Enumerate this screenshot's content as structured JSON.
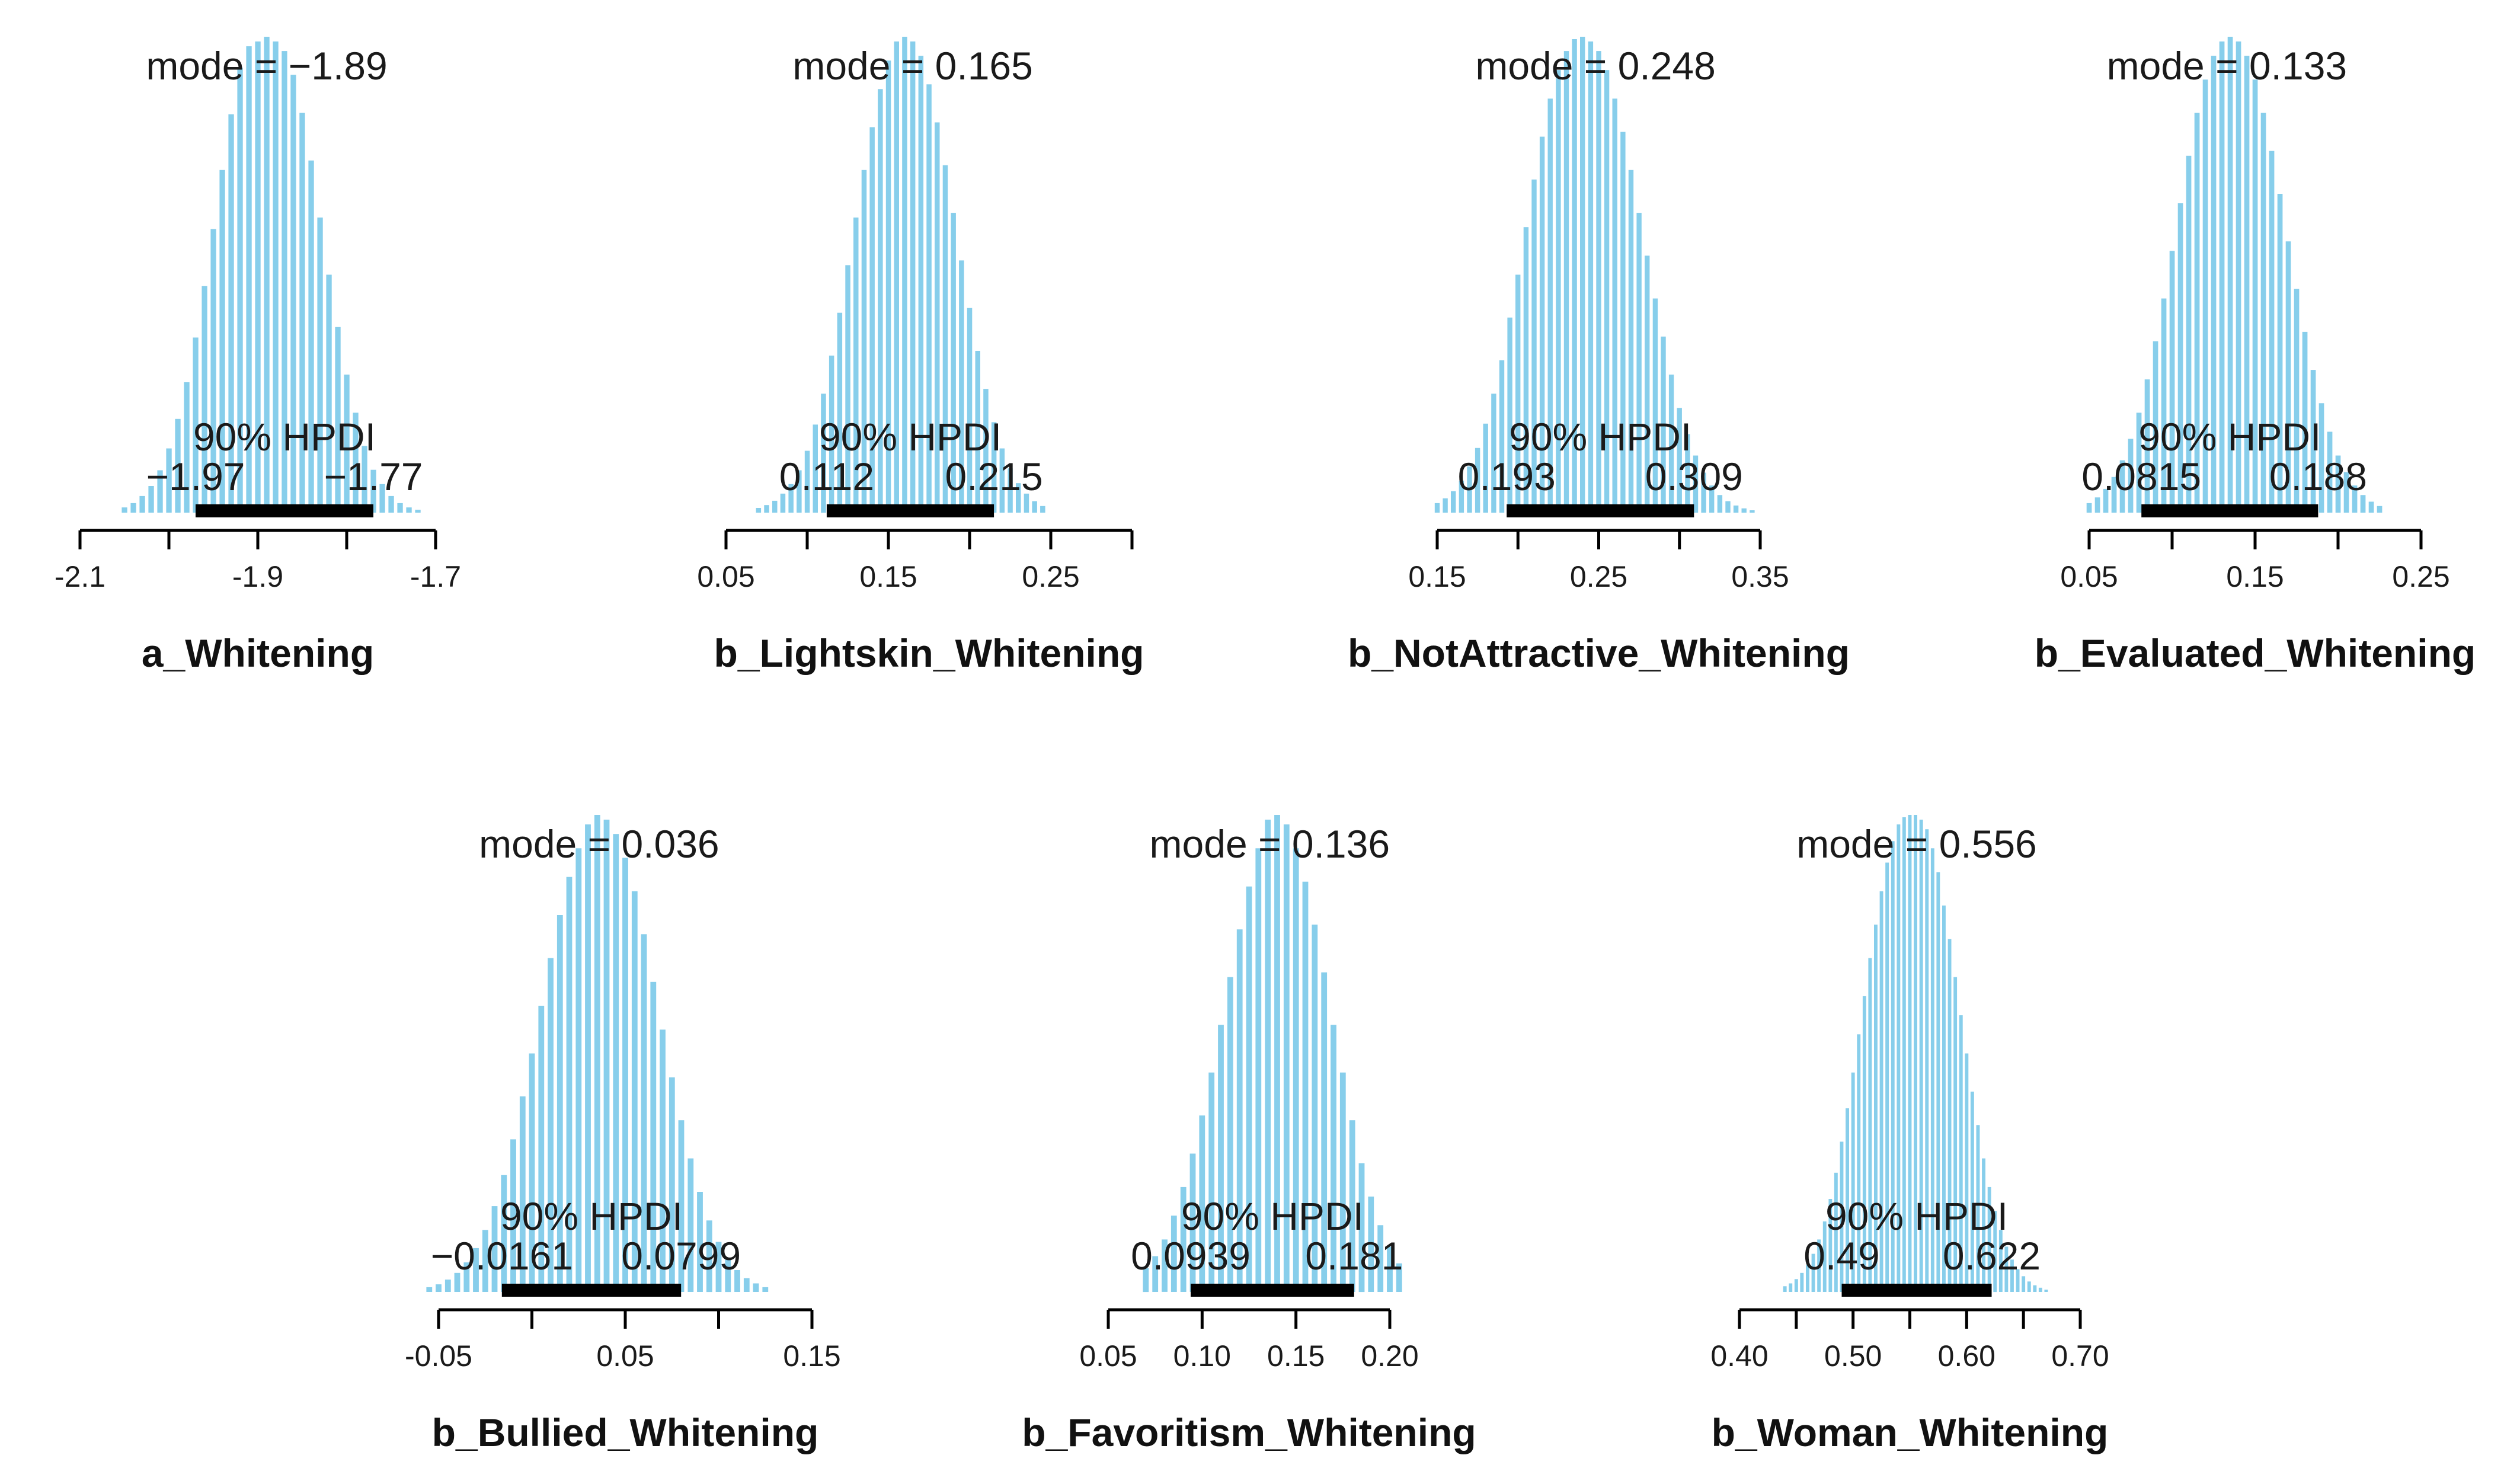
{
  "figure": {
    "bar_color": "#87CEEB",
    "hpdi_color": "#000000",
    "text_color": "#1a1a1a"
  },
  "chart_data": [
    {
      "type": "bar",
      "title": "a_Whitening",
      "mode_label": "mode = −1.89",
      "hpdi_label": "90% HPDI",
      "mode": -1.89,
      "hpdi": [
        -1.97,
        -1.77
      ],
      "hpdi_lower_label": "−1.97",
      "hpdi_upper_label": "−1.77",
      "xlim": [
        -2.1,
        -1.7
      ],
      "x_ticks": [
        -2.1,
        -2.0,
        -1.9,
        -1.8,
        -1.7
      ],
      "x_tick_labels": [
        "-2.1",
        "",
        "-1.9",
        "",
        "-1.7"
      ],
      "sd": 0.06,
      "x": [
        -2.05,
        -2.04,
        -2.03,
        -2.02,
        -2.01,
        -2.0,
        -1.99,
        -1.98,
        -1.97,
        -1.96,
        -1.95,
        -1.94,
        -1.93,
        -1.92,
        -1.91,
        -1.9,
        -1.89,
        -1.88,
        -1.87,
        -1.86,
        -1.85,
        -1.84,
        -1.83,
        -1.82,
        -1.81,
        -1.8,
        -1.79,
        -1.78,
        -1.77,
        -1.76,
        -1.75,
        -1.74,
        -1.73,
        -1.72
      ],
      "density": [
        0.011,
        0.02,
        0.035,
        0.056,
        0.089,
        0.135,
        0.197,
        0.274,
        0.368,
        0.476,
        0.596,
        0.72,
        0.837,
        0.935,
        0.98,
        0.99,
        1.0,
        0.99,
        0.97,
        0.92,
        0.84,
        0.74,
        0.62,
        0.5,
        0.39,
        0.29,
        0.21,
        0.14,
        0.09,
        0.06,
        0.035,
        0.02,
        0.011,
        0.006
      ]
    },
    {
      "type": "bar",
      "title": "b_Lightskin_Whitening",
      "mode_label": "mode = 0.165",
      "hpdi_label": "90% HPDI",
      "mode": 0.165,
      "hpdi": [
        0.112,
        0.215
      ],
      "hpdi_lower_label": "0.112",
      "hpdi_upper_label": "0.215",
      "xlim": [
        0.05,
        0.3
      ],
      "x_ticks": [
        0.05,
        0.1,
        0.15,
        0.2,
        0.25,
        0.3
      ],
      "x_tick_labels": [
        "0.05",
        "",
        "0.15",
        "",
        "0.25",
        ""
      ],
      "sd": 0.031,
      "x": [
        0.07,
        0.075,
        0.08,
        0.085,
        0.09,
        0.095,
        0.1,
        0.105,
        0.11,
        0.115,
        0.12,
        0.125,
        0.13,
        0.135,
        0.14,
        0.145,
        0.15,
        0.155,
        0.16,
        0.165,
        0.17,
        0.175,
        0.18,
        0.185,
        0.19,
        0.195,
        0.2,
        0.205,
        0.21,
        0.215,
        0.22,
        0.225,
        0.23,
        0.235,
        0.24,
        0.245
      ],
      "density": [
        0.01,
        0.016,
        0.025,
        0.04,
        0.06,
        0.089,
        0.13,
        0.185,
        0.25,
        0.33,
        0.42,
        0.52,
        0.62,
        0.72,
        0.81,
        0.89,
        0.95,
        0.99,
        1.0,
        0.99,
        0.96,
        0.9,
        0.82,
        0.73,
        0.63,
        0.53,
        0.43,
        0.34,
        0.26,
        0.19,
        0.135,
        0.093,
        0.062,
        0.04,
        0.024,
        0.014
      ]
    },
    {
      "type": "bar",
      "title": "b_NotAttractive_Whitening",
      "mode_label": "mode = 0.248",
      "hpdi_label": "90% HPDI",
      "mode": 0.248,
      "hpdi": [
        0.193,
        0.309
      ],
      "hpdi_lower_label": "0.193",
      "hpdi_upper_label": "0.309",
      "xlim": [
        0.15,
        0.35
      ],
      "x_ticks": [
        0.15,
        0.2,
        0.25,
        0.3,
        0.35
      ],
      "x_tick_labels": [
        "0.15",
        "",
        "0.25",
        "",
        "0.35"
      ],
      "sd": 0.035,
      "x": [
        0.15,
        0.155,
        0.16,
        0.165,
        0.17,
        0.175,
        0.18,
        0.185,
        0.19,
        0.195,
        0.2,
        0.205,
        0.21,
        0.215,
        0.22,
        0.225,
        0.23,
        0.235,
        0.24,
        0.245,
        0.25,
        0.255,
        0.26,
        0.265,
        0.27,
        0.275,
        0.28,
        0.285,
        0.29,
        0.295,
        0.3,
        0.305,
        0.31,
        0.315,
        0.32,
        0.325,
        0.33,
        0.335,
        0.34,
        0.345
      ],
      "density": [
        0.02,
        0.03,
        0.045,
        0.067,
        0.097,
        0.136,
        0.187,
        0.25,
        0.32,
        0.41,
        0.5,
        0.6,
        0.7,
        0.79,
        0.87,
        0.93,
        0.97,
        0.995,
        1.0,
        0.99,
        0.97,
        0.93,
        0.87,
        0.8,
        0.72,
        0.63,
        0.54,
        0.45,
        0.37,
        0.29,
        0.22,
        0.165,
        0.12,
        0.084,
        0.057,
        0.037,
        0.024,
        0.015,
        0.009,
        0.005
      ]
    },
    {
      "type": "bar",
      "title": "b_Evaluated_Whitening",
      "mode_label": "mode = 0.133",
      "hpdi_label": "90% HPDI",
      "mode": 0.133,
      "hpdi": [
        0.0815,
        0.188
      ],
      "hpdi_lower_label": "0.0815",
      "hpdi_upper_label": "0.188",
      "xlim": [
        0.05,
        0.25
      ],
      "x_ticks": [
        0.05,
        0.1,
        0.15,
        0.2,
        0.25
      ],
      "x_tick_labels": [
        "0.05",
        "",
        "0.15",
        "",
        "0.25"
      ],
      "sd": 0.032,
      "x": [
        0.05,
        0.055,
        0.06,
        0.065,
        0.07,
        0.075,
        0.08,
        0.085,
        0.09,
        0.095,
        0.1,
        0.105,
        0.11,
        0.115,
        0.12,
        0.125,
        0.13,
        0.135,
        0.14,
        0.145,
        0.15,
        0.155,
        0.16,
        0.165,
        0.17,
        0.175,
        0.18,
        0.185,
        0.19,
        0.195,
        0.2,
        0.205,
        0.21,
        0.215,
        0.22,
        0.225
      ],
      "density": [
        0.02,
        0.032,
        0.05,
        0.075,
        0.11,
        0.155,
        0.21,
        0.28,
        0.36,
        0.45,
        0.55,
        0.65,
        0.75,
        0.84,
        0.91,
        0.96,
        0.99,
        1.0,
        0.99,
        0.96,
        0.91,
        0.84,
        0.76,
        0.67,
        0.57,
        0.47,
        0.38,
        0.3,
        0.23,
        0.17,
        0.12,
        0.085,
        0.057,
        0.037,
        0.023,
        0.014
      ]
    },
    {
      "type": "bar",
      "title": "b_Bullied_Whitening",
      "mode_label": "mode = 0.036",
      "hpdi_label": "90% HPDI",
      "mode": 0.036,
      "hpdi": [
        -0.0161,
        0.0799
      ],
      "hpdi_lower_label": "−0.0161",
      "hpdi_upper_label": "0.0799",
      "xlim": [
        -0.05,
        0.15
      ],
      "x_ticks": [
        -0.05,
        0.0,
        0.05,
        0.1,
        0.15
      ],
      "x_tick_labels": [
        "-0.05",
        "",
        "0.05",
        "",
        "0.15"
      ],
      "sd": 0.029,
      "x": [
        -0.055,
        -0.05,
        -0.045,
        -0.04,
        -0.035,
        -0.03,
        -0.025,
        -0.02,
        -0.015,
        -0.01,
        -0.005,
        0.0,
        0.005,
        0.01,
        0.015,
        0.02,
        0.025,
        0.03,
        0.035,
        0.04,
        0.045,
        0.05,
        0.055,
        0.06,
        0.065,
        0.07,
        0.075,
        0.08,
        0.085,
        0.09,
        0.095,
        0.1,
        0.105,
        0.11,
        0.115,
        0.12,
        0.125
      ],
      "density": [
        0.01,
        0.016,
        0.026,
        0.04,
        0.062,
        0.092,
        0.13,
        0.18,
        0.245,
        0.32,
        0.41,
        0.5,
        0.6,
        0.7,
        0.79,
        0.87,
        0.93,
        0.98,
        1.0,
        0.99,
        0.96,
        0.91,
        0.84,
        0.75,
        0.65,
        0.55,
        0.45,
        0.36,
        0.28,
        0.21,
        0.15,
        0.105,
        0.07,
        0.046,
        0.029,
        0.018,
        0.01
      ]
    },
    {
      "type": "bar",
      "title": "b_Favoritism_Whitening",
      "mode_label": "mode = 0.136",
      "hpdi_label": "90% HPDI",
      "mode": 0.136,
      "hpdi": [
        0.0939,
        0.181
      ],
      "hpdi_lower_label": "0.0939",
      "hpdi_upper_label": "0.181",
      "xlim": [
        0.05,
        0.2
      ],
      "x_ticks": [
        0.05,
        0.1,
        0.15,
        0.2
      ],
      "x_tick_labels": [
        "0.05",
        "0.10",
        "0.15",
        "0.20"
      ],
      "sd": 0.027,
      "x": [
        0.07,
        0.075,
        0.08,
        0.085,
        0.09,
        0.095,
        0.1,
        0.105,
        0.11,
        0.115,
        0.12,
        0.125,
        0.13,
        0.135,
        0.14,
        0.145,
        0.15,
        0.155,
        0.16,
        0.165,
        0.17,
        0.175,
        0.18,
        0.185,
        0.19,
        0.195,
        0.2,
        0.205
      ],
      "density": [
        0.05,
        0.075,
        0.11,
        0.16,
        0.22,
        0.29,
        0.37,
        0.46,
        0.56,
        0.66,
        0.76,
        0.85,
        0.93,
        0.99,
        1.0,
        0.98,
        0.93,
        0.86,
        0.77,
        0.67,
        0.56,
        0.46,
        0.36,
        0.27,
        0.2,
        0.14,
        0.095,
        0.06
      ]
    },
    {
      "type": "bar",
      "title": "b_Woman_Whitening",
      "mode_label": "mode = 0.556",
      "hpdi_label": "90% HPDI",
      "mode": 0.556,
      "hpdi": [
        0.49,
        0.622
      ],
      "hpdi_lower_label": "0.49",
      "hpdi_upper_label": "0.622",
      "xlim": [
        0.4,
        0.7
      ],
      "x_ticks": [
        0.4,
        0.45,
        0.5,
        0.55,
        0.6,
        0.65,
        0.7
      ],
      "x_tick_labels": [
        "0.40",
        "",
        "0.50",
        "",
        "0.60",
        "",
        "0.70"
      ],
      "sd": 0.04,
      "x": [
        0.44,
        0.445,
        0.45,
        0.455,
        0.46,
        0.465,
        0.47,
        0.475,
        0.48,
        0.485,
        0.49,
        0.495,
        0.5,
        0.505,
        0.51,
        0.515,
        0.52,
        0.525,
        0.53,
        0.535,
        0.54,
        0.545,
        0.55,
        0.555,
        0.56,
        0.565,
        0.57,
        0.575,
        0.58,
        0.585,
        0.59,
        0.595,
        0.6,
        0.605,
        0.61,
        0.615,
        0.62,
        0.625,
        0.63,
        0.635,
        0.64,
        0.645,
        0.65,
        0.655,
        0.66,
        0.665,
        0.67
      ],
      "density": [
        0.012,
        0.018,
        0.027,
        0.04,
        0.057,
        0.08,
        0.11,
        0.148,
        0.195,
        0.25,
        0.315,
        0.385,
        0.46,
        0.54,
        0.62,
        0.7,
        0.77,
        0.84,
        0.9,
        0.945,
        0.98,
        0.995,
        1.0,
        1.0,
        0.99,
        0.97,
        0.93,
        0.88,
        0.81,
        0.74,
        0.66,
        0.58,
        0.5,
        0.42,
        0.35,
        0.28,
        0.22,
        0.17,
        0.13,
        0.095,
        0.068,
        0.048,
        0.033,
        0.022,
        0.014,
        0.009,
        0.005
      ]
    }
  ]
}
